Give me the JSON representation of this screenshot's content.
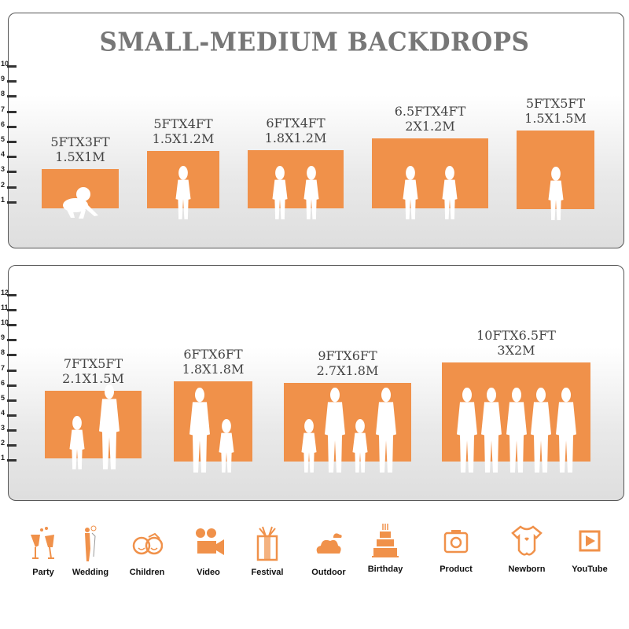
{
  "title": "SMALL-MEDIUM BACKDROPS",
  "accent_color": "#f0914a",
  "panels": [
    {
      "ruler": [
        "10",
        "9",
        "8",
        "7",
        "6",
        "5",
        "4",
        "3",
        "2",
        "1"
      ],
      "backdrops": [
        {
          "ft": "5FTX3FT",
          "m": "1.5X1M",
          "people": [
            "baby"
          ]
        },
        {
          "ft": "5FTX4FT",
          "m": "1.5X1.2M",
          "people": [
            "child"
          ]
        },
        {
          "ft": "6FTX4FT",
          "m": "1.8X1.2M",
          "people": [
            "child",
            "child"
          ]
        },
        {
          "ft": "6.5FTX4FT",
          "m": "2X1.2M",
          "people": [
            "child",
            "child"
          ]
        },
        {
          "ft": "5FTX5FT",
          "m": "1.5X1.5M",
          "people": [
            "child"
          ]
        }
      ]
    },
    {
      "ruler": [
        "12",
        "11",
        "10",
        "9",
        "8",
        "7",
        "6",
        "5",
        "4",
        "3",
        "2",
        "1"
      ],
      "backdrops": [
        {
          "ft": "7FTX5FT",
          "m": "2.1X1.5M",
          "people": [
            "child",
            "adult"
          ]
        },
        {
          "ft": "6FTX6FT",
          "m": "1.8X1.8M",
          "people": [
            "adult",
            "child"
          ]
        },
        {
          "ft": "9FTX6FT",
          "m": "2.7X1.8M",
          "people": [
            "child",
            "adult",
            "child",
            "adult"
          ]
        },
        {
          "ft": "10FTX6.5FT",
          "m": "3X2M",
          "people": [
            "adult",
            "adult",
            "adult",
            "adult",
            "adult"
          ]
        }
      ]
    }
  ],
  "categories": [
    {
      "label": "Party",
      "icon": "champagne-glasses-icon"
    },
    {
      "label": "Wedding",
      "icon": "wedding-couple-icon"
    },
    {
      "label": "Children",
      "icon": "children-faces-icon"
    },
    {
      "label": "Video",
      "icon": "movie-camera-icon"
    },
    {
      "label": "Festival",
      "icon": "gift-box-icon"
    },
    {
      "label": "Outdoor",
      "icon": "cloud-icon"
    },
    {
      "label": "Birthday",
      "icon": "birthday-cake-icon"
    },
    {
      "label": "Product",
      "icon": "camera-icon"
    },
    {
      "label": "Newborn",
      "icon": "baby-onesie-icon"
    },
    {
      "label": "YouTube",
      "icon": "play-button-icon"
    }
  ]
}
